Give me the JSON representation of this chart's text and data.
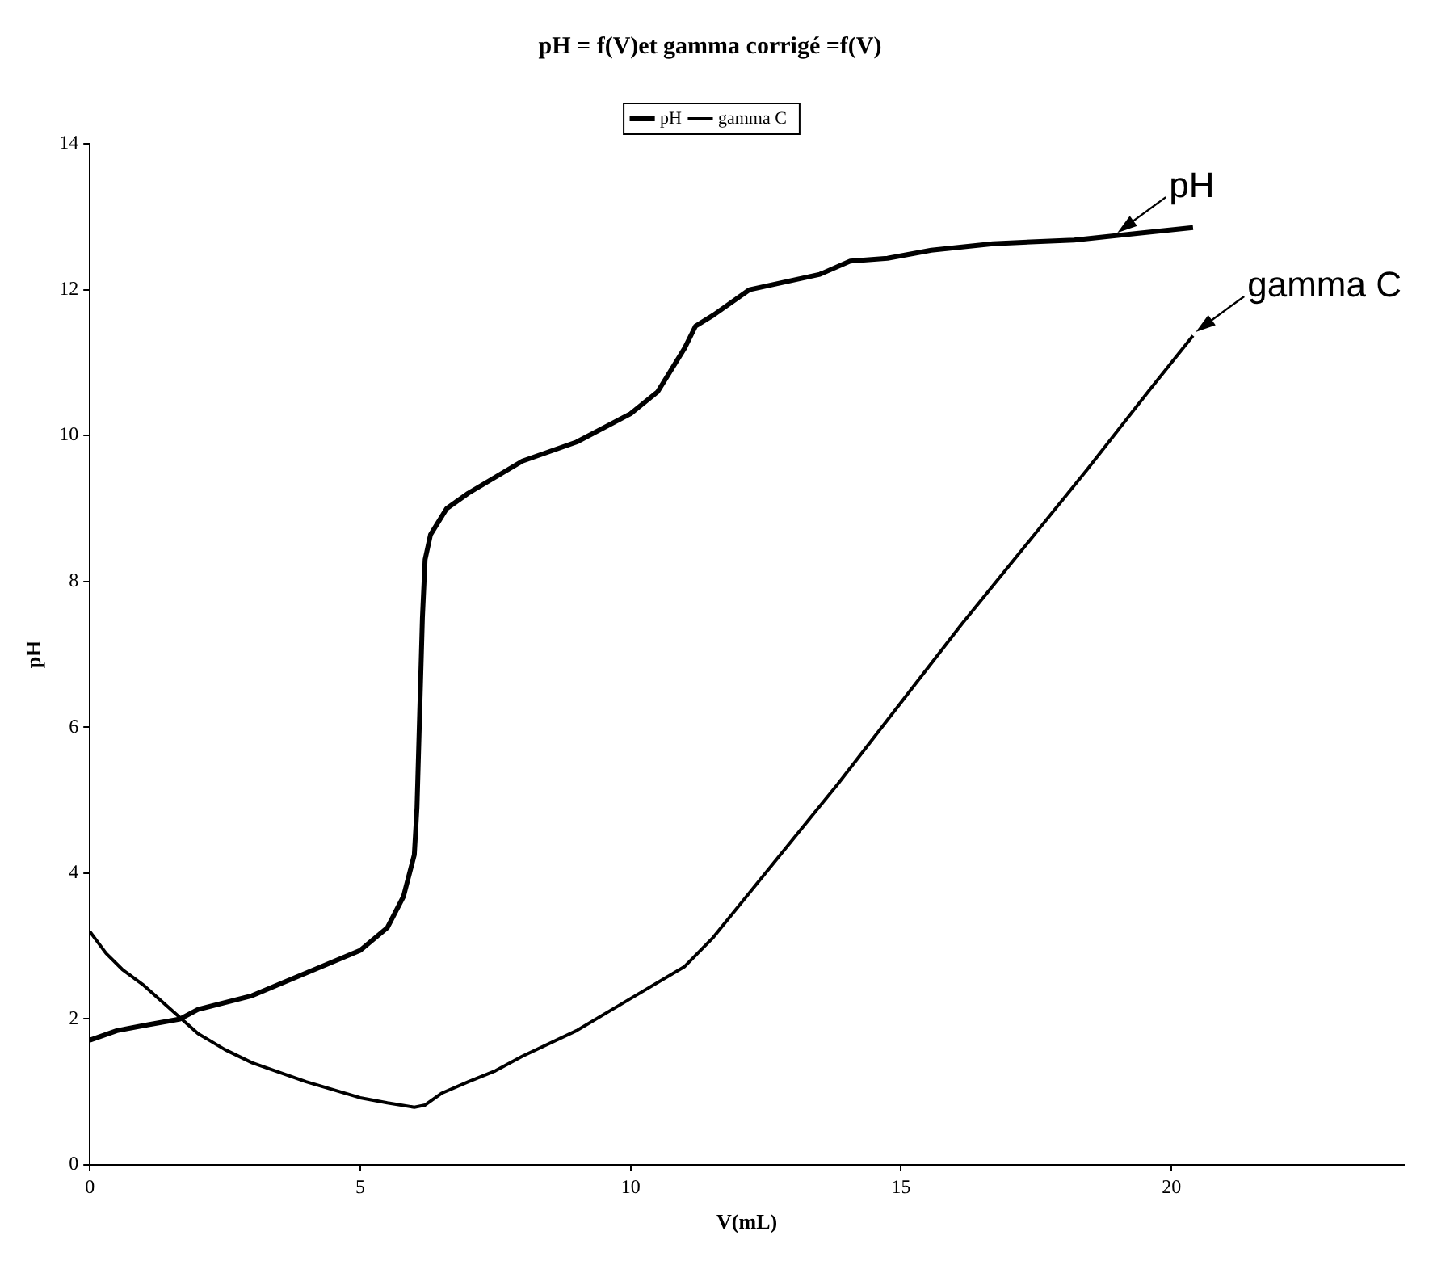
{
  "chart_data": {
    "type": "line",
    "title": "pH = f(V)et gamma corrigé =f(V)",
    "xlabel": "V(mL)",
    "ylabel": "pH",
    "xlim": [
      0,
      24.3
    ],
    "xticks": [
      0,
      5,
      10,
      15,
      20
    ],
    "ylim": [
      0,
      14
    ],
    "yticks": [
      0,
      2,
      4,
      6,
      8,
      10,
      12,
      14
    ],
    "grid": false,
    "legend": "top",
    "marker": "none",
    "line_style": "solid",
    "series": [
      {
        "name": "pH",
        "color": "#000000",
        "x": [
          0,
          0.5,
          1,
          1.67,
          2,
          3,
          4,
          5,
          5.5,
          5.8,
          6.0,
          6.05,
          6.1,
          6.15,
          6.2,
          6.3,
          6.6,
          7,
          8,
          9,
          10,
          10.5,
          11,
          11.2,
          11.53,
          12.2,
          13.5,
          14.06,
          14.75,
          15.56,
          16.7,
          18.2,
          19.36,
          20.4
        ],
        "values": [
          1.71,
          1.84,
          1.91,
          2.0,
          2.13,
          2.32,
          2.63,
          2.94,
          3.25,
          3.68,
          4.25,
          4.9,
          6.2,
          7.5,
          8.3,
          8.64,
          9.0,
          9.21,
          9.65,
          9.91,
          10.3,
          10.6,
          11.2,
          11.5,
          11.65,
          12.0,
          12.21,
          12.39,
          12.43,
          12.54,
          12.63,
          12.68,
          12.77,
          12.85
        ]
      },
      {
        "name": "gamma C",
        "color": "#000000",
        "x": [
          0,
          0.3,
          0.6,
          1,
          1.5,
          2,
          2.5,
          3,
          4,
          5,
          5.5,
          6,
          6.2,
          6.5,
          7,
          7.5,
          8,
          9,
          10,
          11,
          11.53,
          12.68,
          13.83,
          15.21,
          16.13,
          17.28,
          18.44,
          19.59,
          20.4
        ],
        "values": [
          3.2,
          2.9,
          2.68,
          2.46,
          2.13,
          1.8,
          1.58,
          1.4,
          1.14,
          0.92,
          0.85,
          0.79,
          0.82,
          0.98,
          1.14,
          1.29,
          1.49,
          1.84,
          2.28,
          2.72,
          3.12,
          4.17,
          5.22,
          6.54,
          7.42,
          8.47,
          9.53,
          10.62,
          11.37
        ]
      }
    ],
    "annotations": [
      {
        "text": "pH",
        "x": 19.0,
        "y": 12.78
      },
      {
        "text": "gamma C",
        "x": 20.45,
        "y": 11.42
      }
    ]
  }
}
